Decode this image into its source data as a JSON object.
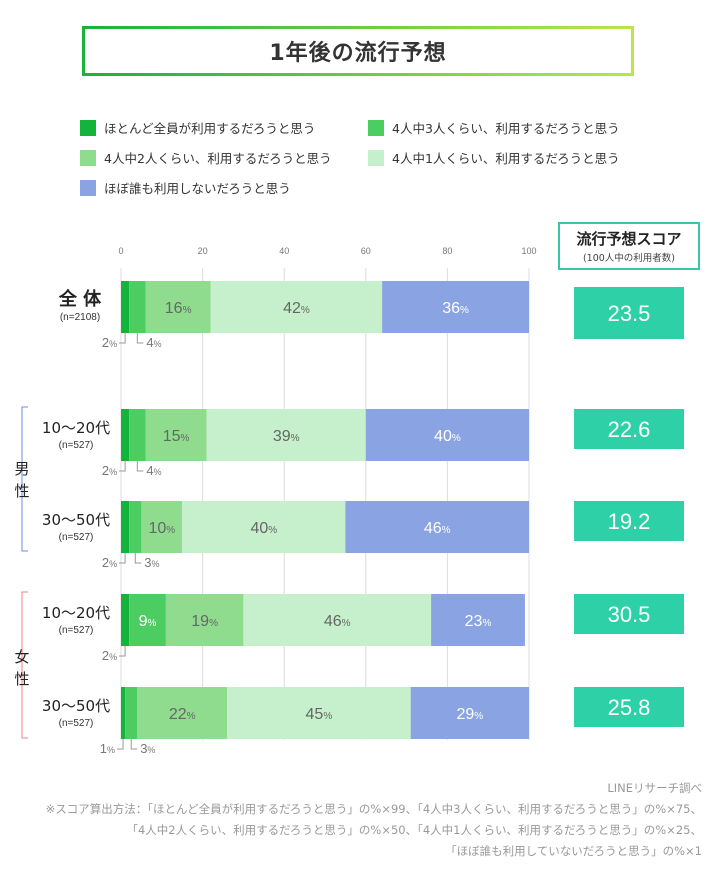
{
  "title": "1年後の流行予想",
  "legend": [
    {
      "label": "ほとんど全員が利用するだろうと思う",
      "color": "#14b43c"
    },
    {
      "label": "4人中3人くらい、利用するだろうと思う",
      "color": "#4ccd62"
    },
    {
      "label": "4人中2人くらい、利用するだろうと思う",
      "color": "#8fdc8f"
    },
    {
      "label": "4人中1人くらい、利用するだろうと思う",
      "color": "#c6efcb"
    },
    {
      "label": "ほぼ誰も利用しないだろうと思う",
      "color": "#8aa4e3"
    }
  ],
  "score_header": {
    "title": "流行予想スコア",
    "subtitle": "(100人中の利用者数)"
  },
  "group_labels": {
    "male": "男性",
    "female": "女性"
  },
  "chart_data": {
    "type": "bar",
    "orientation": "horizontal",
    "stacked": true,
    "xlim": [
      0,
      100
    ],
    "x_ticks": [
      "0",
      "20",
      "40",
      "60",
      "80",
      "100"
    ],
    "series_names": [
      "ほとんど全員が利用するだろうと思う",
      "4人中3人くらい、利用するだろうと思う",
      "4人中2人くらい、利用するだろうと思う",
      "4人中1人くらい、利用するだろうと思う",
      "ほぼ誰も利用しないだろうと思う"
    ],
    "rows": [
      {
        "label": "全 体",
        "n": "(n=2108)",
        "values": [
          2,
          4,
          16,
          42,
          36
        ],
        "score": "23.5",
        "group": ""
      },
      {
        "label": "10〜20代",
        "n": "(n=527)",
        "values": [
          2,
          4,
          15,
          39,
          40
        ],
        "score": "22.6",
        "group": "male"
      },
      {
        "label": "30〜50代",
        "n": "(n=527)",
        "values": [
          2,
          3,
          10,
          40,
          46
        ],
        "score": "19.2",
        "group": "male"
      },
      {
        "label": "10〜20代",
        "n": "(n=527)",
        "values": [
          2,
          9,
          19,
          46,
          23
        ],
        "score": "30.5",
        "group": "female"
      },
      {
        "label": "30〜50代",
        "n": "(n=527)",
        "values": [
          1,
          3,
          22,
          45,
          29
        ],
        "score": "25.8",
        "group": "female"
      }
    ],
    "colors": [
      "#14b43c",
      "#4ccd62",
      "#8fdc8f",
      "#c6efcb",
      "#8aa4e3"
    ],
    "value_suffix": "%"
  },
  "notes": {
    "source": "LINEリサーチ調べ",
    "formula_1": "※スコア算出方法：「ほとんど全員が利用するだろうと思う」の%×99、「4人中3人くらい、利用するだろうと思う」の%×75、",
    "formula_2": "「4人中2人くらい、利用するだろうと思う」の%×50、「4人中1人くらい、利用するだろうと思う」の%×25、",
    "formula_3": "「ほぼ誰も利用していないだろうと思う」の%×1"
  }
}
